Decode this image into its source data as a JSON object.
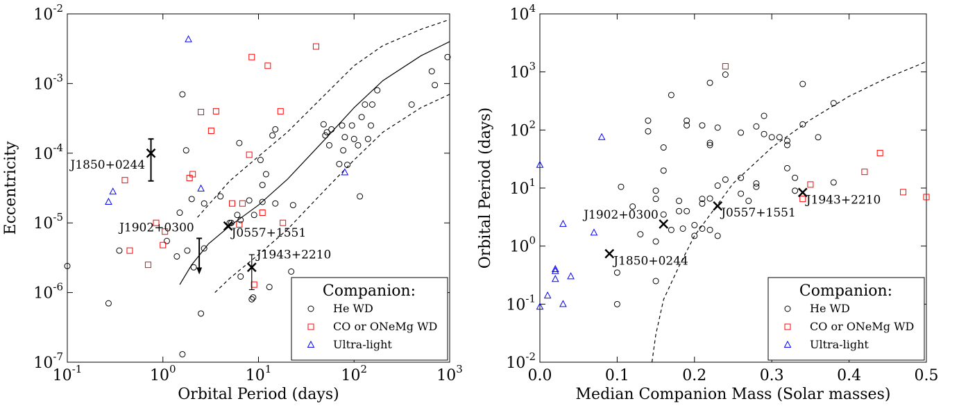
{
  "chart_data": [
    {
      "type": "scatter",
      "xlabel": "Orbital Period (days)",
      "ylabel": "Eccentricity",
      "xscale": "log",
      "yscale": "log",
      "xlim": [
        0.1,
        1000
      ],
      "ylim": [
        1e-07,
        0.01
      ],
      "xticks": [
        {
          "value": 0.1,
          "label": "10",
          "exponent": "-1"
        },
        {
          "value": 1,
          "label": "10",
          "exponent": "0"
        },
        {
          "value": 10,
          "label": "10",
          "exponent": "1"
        },
        {
          "value": 100,
          "label": "10",
          "exponent": "2"
        },
        {
          "value": 1000,
          "label": "10",
          "exponent": "3"
        }
      ],
      "yticks": [
        {
          "value": 1e-07,
          "label": "10",
          "exponent": "-7"
        },
        {
          "value": 1e-06,
          "label": "10",
          "exponent": "-6"
        },
        {
          "value": 1e-05,
          "label": "10",
          "exponent": "-5"
        },
        {
          "value": 0.0001,
          "label": "10",
          "exponent": "-4"
        },
        {
          "value": 0.001,
          "label": "10",
          "exponent": "-3"
        },
        {
          "value": 0.01,
          "label": "10",
          "exponent": "-2"
        }
      ],
      "legend_title": "Companion:",
      "legend_loc": "lower right",
      "series": [
        {
          "name": "He WD",
          "color": "#000000",
          "marker": "circle",
          "x": [
            0.1,
            0.27,
            0.35,
            1.1,
            1.4,
            1.5,
            1.6,
            1.75,
            1.8,
            1.6,
            2.0,
            2.1,
            2.5,
            2.7,
            2.7,
            4.0,
            5.0,
            5.2,
            6.0,
            6.3,
            6.5,
            6.5,
            8.0,
            8.5,
            8.8,
            9.0,
            10.5,
            11,
            11,
            12,
            13,
            14,
            15,
            15,
            22,
            23,
            48,
            50,
            52,
            55,
            58,
            70,
            75,
            77,
            80,
            85,
            95,
            100,
            110,
            115,
            120,
            130,
            140,
            150,
            155,
            175,
            400,
            650,
            700,
            950
          ],
          "values": [
            2.4e-06,
            7e-07,
            4e-06,
            5.5e-06,
            3.3e-06,
            1.4e-05,
            0.0007,
            0.00011,
            4e-06,
            1.3e-07,
            2.2e-05,
            2.3e-06,
            5e-07,
            4.3e-06,
            1.9e-05,
            2.4e-05,
            1e-05,
            1e-05,
            1.3e-05,
            0.00014,
            1.1e-05,
            1.7e-06,
            2.1e-05,
            8e-07,
            8.5e-07,
            1.3e-05,
            8e-05,
            2e-05,
            3.5e-05,
            5e-05,
            1.2e-06,
            0.00018,
            0.00022,
            1.9e-05,
            2e-06,
            1.8e-05,
            0.00026,
            0.00018,
            0.0002,
            0.00013,
            0.00022,
            7e-05,
            0.00025,
            0.00011,
            0.00017,
            6.8e-05,
            0.00025,
            0.00016,
            0.00013,
            2.4e-05,
            0.00033,
            0.0005,
            0.00016,
            0.00025,
            0.0005,
            0.0008,
            0.0005,
            0.0015,
            0.00095,
            0.0024
          ]
        },
        {
          "name": "CO or ONeMg WD",
          "color": "#ff0000",
          "marker": "square",
          "x": [
            0.4,
            0.45,
            0.7,
            0.85,
            1.0,
            1.05,
            1.9,
            2.05,
            2.5,
            3.2,
            3.6,
            5.3,
            6.3,
            6.8,
            8.0,
            8.5,
            9.0,
            11,
            12.5,
            17,
            18,
            40
          ],
          "values": [
            4.1e-05,
            4e-06,
            2.5e-06,
            1e-05,
            4.8e-06,
            7.5e-06,
            4.4e-05,
            5e-05,
            0.00039,
            0.00021,
            0.0004,
            1.9e-05,
            9.5e-06,
            1.9e-05,
            9.5e-05,
            0.0024,
            1.3e-06,
            1.4e-05,
            0.0018,
            0.0004,
            1e-05,
            0.0034
          ]
        },
        {
          "name": "Ultra-light",
          "color": "#0000ff",
          "marker": "triangle",
          "x": [
            0.27,
            0.3,
            1.85,
            2.5,
            80
          ],
          "values": [
            2e-05,
            2.8e-05,
            0.0043,
            3.1e-05,
            5.3e-05
          ]
        }
      ],
      "curves": [
        {
          "style": "solid",
          "x": [
            1.5,
            2,
            3,
            5,
            10,
            20,
            50,
            100,
            200,
            500,
            1000
          ],
          "values": [
            1.3e-06,
            2.5e-06,
            5e-06,
            9e-06,
            1.8e-05,
            4.2e-05,
            0.00016,
            0.00045,
            0.0011,
            0.0025,
            0.004
          ]
        },
        {
          "style": "dashed",
          "x": [
            2.3,
            5,
            10,
            20,
            50,
            100,
            200,
            500,
            1000
          ],
          "values": [
            1.2e-05,
            4e-05,
            9e-05,
            0.0002,
            0.0007,
            0.0018,
            0.0035,
            0.006,
            0.0083
          ]
        },
        {
          "style": "dashed",
          "x": [
            3.5,
            5,
            10,
            20,
            50,
            100,
            200,
            500,
            1000
          ],
          "values": [
            1e-06,
            1.6e-06,
            3.5e-06,
            8e-06,
            3e-05,
            8e-05,
            0.0002,
            0.00045,
            0.0007
          ]
        }
      ],
      "highlights": [
        {
          "label": "J1850+0244",
          "x": 0.75,
          "y": 0.0001,
          "y_low": 4e-05,
          "y_high": 0.00016
        },
        {
          "label": "J1902+0300",
          "x": 2.4,
          "upper_limit": 6e-06
        },
        {
          "label": "J0557+1551",
          "x": 4.8,
          "y": 9e-06
        },
        {
          "label": "J1943+2210",
          "x": 8.5,
          "y": 2.3e-06,
          "y_low": 1.1e-06,
          "y_high": 3.5e-06
        }
      ]
    },
    {
      "type": "scatter",
      "xlabel": "Median Companion Mass (Solar masses)",
      "ylabel": "Orbital Period (days)",
      "xscale": "linear",
      "yscale": "log",
      "xlim": [
        0,
        0.5
      ],
      "ylim": [
        0.01,
        10000
      ],
      "xticks": [
        {
          "value": 0,
          "label": "0.0"
        },
        0.1,
        0.2,
        0.3,
        0.4,
        0.5
      ],
      "yticks": [
        {
          "value": 0.01,
          "label": "10",
          "exponent": "-2"
        },
        {
          "value": 0.1,
          "label": "10",
          "exponent": "-1"
        },
        {
          "value": 1,
          "label": "10",
          "exponent": "0"
        },
        {
          "value": 10,
          "label": "10",
          "exponent": "1"
        },
        {
          "value": 100,
          "label": "10",
          "exponent": "2"
        },
        {
          "value": 1000,
          "label": "10",
          "exponent": "3"
        },
        {
          "value": 10000,
          "label": "10",
          "exponent": "4"
        }
      ],
      "legend_title": "Companion:",
      "legend_loc": "lower right",
      "series": [
        {
          "name": "He WD",
          "color": "#000000",
          "marker": "circle",
          "x": [
            0.1,
            0.1,
            0.105,
            0.12,
            0.13,
            0.14,
            0.14,
            0.15,
            0.15,
            0.15,
            0.15,
            0.16,
            0.16,
            0.16,
            0.17,
            0.17,
            0.18,
            0.18,
            0.185,
            0.19,
            0.19,
            0.19,
            0.2,
            0.2,
            0.21,
            0.21,
            0.21,
            0.21,
            0.22,
            0.22,
            0.22,
            0.22,
            0.22,
            0.23,
            0.23,
            0.23,
            0.24,
            0.24,
            0.26,
            0.26,
            0.26,
            0.27,
            0.28,
            0.28,
            0.28,
            0.29,
            0.29,
            0.3,
            0.31,
            0.32,
            0.32,
            0.32,
            0.33,
            0.33,
            0.34,
            0.34,
            0.36,
            0.38,
            0.38
          ],
          "values": [
            0.35,
            0.1,
            10.5,
            4.8,
            1.6,
            145,
            95,
            9,
            6.5,
            1.2,
            0.25,
            50,
            20,
            3.5,
            400,
            1.9,
            6,
            4,
            2,
            145,
            120,
            4,
            2.3,
            1.5,
            120,
            6.5,
            5.4,
            2,
            650,
            60,
            55,
            6.6,
            1.9,
            110,
            11,
            1.5,
            900,
            14,
            90,
            15,
            8,
            6,
            115,
            12,
            10.5,
            175,
            85,
            75,
            75,
            65,
            55,
            22,
            15,
            9,
            620,
            125,
            75,
            290,
            12.5
          ]
        },
        {
          "name": "CO or ONeMg WD",
          "color": "#ff0000",
          "marker": "square",
          "x": [
            0.24,
            0.34,
            0.35,
            0.42,
            0.44,
            0.47,
            0.5
          ],
          "values": [
            1250,
            6.5,
            11.5,
            19,
            40,
            8.5,
            7
          ]
        },
        {
          "name": "Ultra-light",
          "color": "#0000ff",
          "marker": "triangle",
          "x": [
            0.0,
            0.0,
            0.01,
            0.02,
            0.02,
            0.02,
            0.03,
            0.03,
            0.04,
            0.07,
            0.08
          ],
          "values": [
            25,
            0.09,
            0.14,
            0.4,
            0.37,
            0.27,
            2.4,
            0.1,
            0.3,
            1.7,
            75
          ]
        }
      ],
      "curves": [
        {
          "style": "dashed",
          "x": [
            0.145,
            0.15,
            0.16,
            0.18,
            0.2,
            0.25,
            0.3,
            0.35,
            0.4,
            0.45,
            0.5
          ],
          "values": [
            0.01,
            0.03,
            0.12,
            0.45,
            1.5,
            12,
            50,
            150,
            380,
            800,
            1500
          ]
        }
      ],
      "highlights": [
        {
          "label": "J1850+0244",
          "x": 0.09,
          "y": 0.74
        },
        {
          "label": "J1902+0300",
          "x": 0.16,
          "y": 2.4
        },
        {
          "label": "J0557+1551",
          "x": 0.23,
          "y": 4.9
        },
        {
          "label": "J1943+2210",
          "x": 0.34,
          "y": 8.4
        }
      ]
    }
  ]
}
